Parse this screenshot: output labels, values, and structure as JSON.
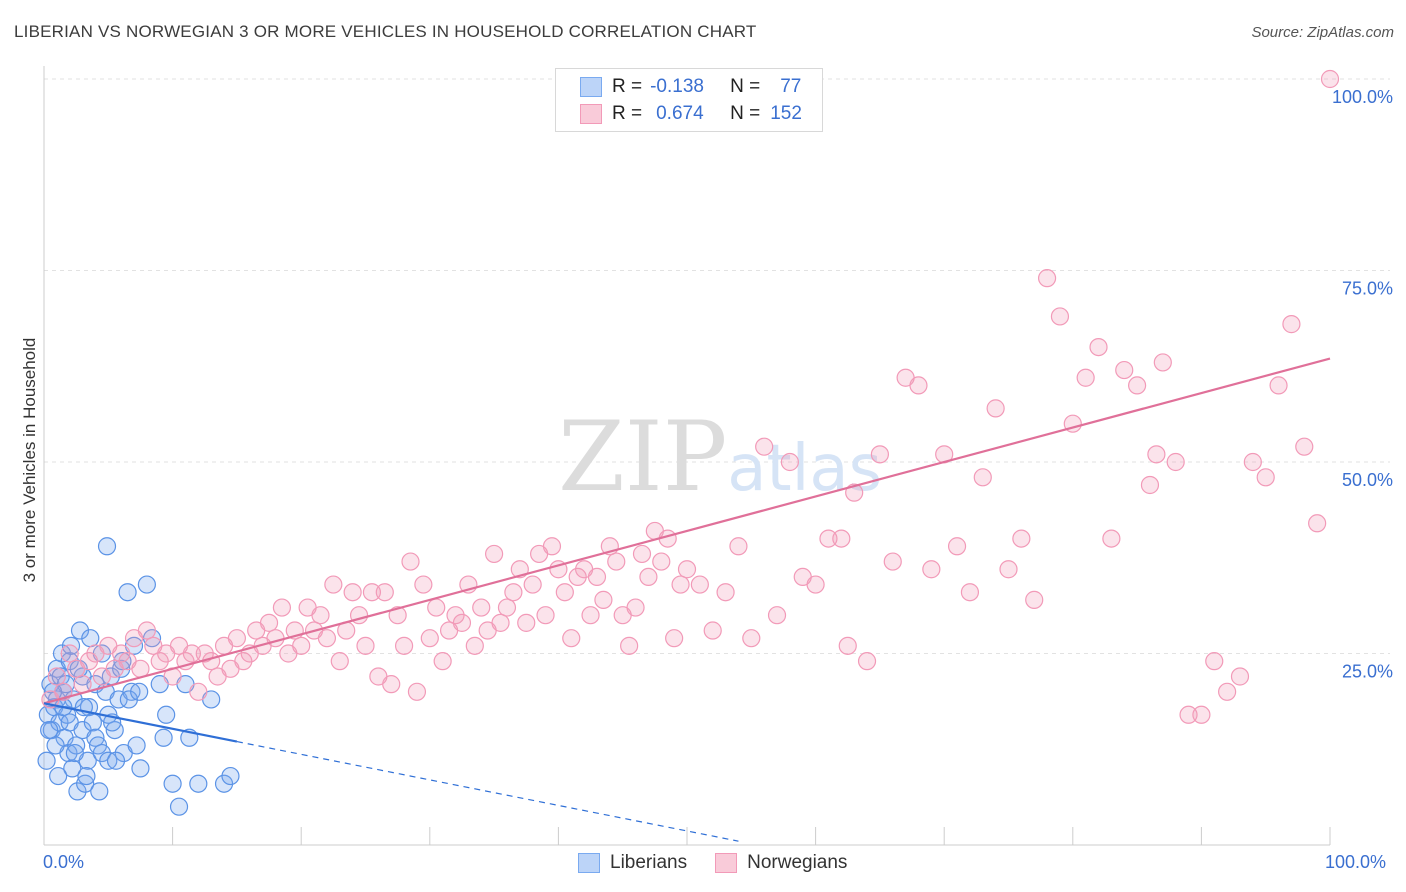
{
  "title": "LIBERIAN VS NORWEGIAN 3 OR MORE VEHICLES IN HOUSEHOLD CORRELATION CHART",
  "source": "Source: ZipAtlas.com",
  "watermark": "ZIPatlas",
  "legend_top": {
    "rows": [
      {
        "r_label": "R =",
        "r_value": "-0.138",
        "n_label": "N =",
        "n_value": "77"
      },
      {
        "r_label": "R =",
        "r_value": "0.674",
        "n_label": "N =",
        "n_value": "152"
      }
    ]
  },
  "bottom_legend": [
    "Liberians",
    "Norwegians"
  ],
  "x_tick_labels": {
    "left": "0.0%",
    "right": "100.0%"
  },
  "chart_data": {
    "type": "scatter",
    "title": "LIBERIAN VS NORWEGIAN 3 OR MORE VEHICLES IN HOUSEHOLD CORRELATION CHART",
    "xlabel": "",
    "ylabel": "3 or more Vehicles in Household",
    "xlim": [
      0,
      100
    ],
    "ylim": [
      0,
      100
    ],
    "y_ticks": [
      25,
      50,
      75,
      100
    ],
    "y_tick_labels": [
      "25.0%",
      "50.0%",
      "75.0%",
      "100.0%"
    ],
    "grid": true,
    "legend_position": "bottom",
    "colors": {
      "Liberians": "#7aaaf0",
      "Norwegians": "#f29ab8",
      "liberian_line": "#2f6fd6",
      "norwegian_line": "#e07099",
      "tick_text": "#3a6fd0"
    },
    "series": [
      {
        "name": "Liberians",
        "trend": {
          "x": [
            0,
            15
          ],
          "y": [
            18.5,
            13.5
          ],
          "dashed_extension_to_x": 54
        },
        "points": [
          [
            0.3,
            17
          ],
          [
            0.5,
            21
          ],
          [
            0.6,
            15
          ],
          [
            0.8,
            18
          ],
          [
            1,
            23
          ],
          [
            1,
            19
          ],
          [
            1.2,
            16
          ],
          [
            1.3,
            22
          ],
          [
            1.4,
            25
          ],
          [
            1.5,
            20
          ],
          [
            1.6,
            14
          ],
          [
            1.8,
            17
          ],
          [
            1.9,
            12
          ],
          [
            2,
            24
          ],
          [
            2,
            16
          ],
          [
            2.2,
            10
          ],
          [
            2.3,
            19
          ],
          [
            2.5,
            13
          ],
          [
            2.6,
            7
          ],
          [
            2.8,
            28
          ],
          [
            3,
            15
          ],
          [
            3,
            22
          ],
          [
            3.2,
            8
          ],
          [
            3.4,
            11
          ],
          [
            3.5,
            18
          ],
          [
            3.6,
            27
          ],
          [
            3.8,
            16
          ],
          [
            4,
            21
          ],
          [
            4,
            14
          ],
          [
            4.2,
            13
          ],
          [
            4.5,
            12
          ],
          [
            4.5,
            25
          ],
          [
            4.8,
            20
          ],
          [
            5,
            17
          ],
          [
            5,
            11
          ],
          [
            5.2,
            22
          ],
          [
            5.5,
            15
          ],
          [
            5.8,
            19
          ],
          [
            6,
            23
          ],
          [
            6.2,
            12
          ],
          [
            6.5,
            33
          ],
          [
            6.8,
            20
          ],
          [
            7,
            26
          ],
          [
            7.2,
            13
          ],
          [
            7.5,
            10
          ],
          [
            8,
            34
          ],
          [
            8.4,
            27
          ],
          [
            9,
            21
          ],
          [
            9.3,
            14
          ],
          [
            9.5,
            17
          ],
          [
            10,
            8
          ],
          [
            10.5,
            5
          ],
          [
            11,
            21
          ],
          [
            11.3,
            14
          ],
          [
            0.2,
            11
          ],
          [
            0.4,
            15
          ],
          [
            0.9,
            13
          ],
          [
            1.1,
            9
          ],
          [
            1.7,
            21
          ],
          [
            2.1,
            26
          ],
          [
            2.4,
            12
          ],
          [
            2.7,
            23
          ],
          [
            3.3,
            9
          ],
          [
            4.3,
            7
          ],
          [
            4.9,
            39
          ],
          [
            5.3,
            16
          ],
          [
            5.6,
            11
          ],
          [
            6.1,
            24
          ],
          [
            6.6,
            19
          ],
          [
            7.4,
            20
          ],
          [
            12,
            8
          ],
          [
            13,
            19
          ],
          [
            14,
            8
          ],
          [
            14.5,
            9
          ],
          [
            3.1,
            18
          ],
          [
            1.5,
            18
          ],
          [
            0.7,
            20
          ]
        ]
      },
      {
        "name": "Norwegians",
        "trend": {
          "x": [
            0,
            100
          ],
          "y": [
            18.5,
            63.5
          ]
        },
        "points": [
          [
            0.5,
            19
          ],
          [
            1,
            22
          ],
          [
            1.5,
            20
          ],
          [
            2,
            25
          ],
          [
            2.5,
            23
          ],
          [
            3,
            21
          ],
          [
            3.5,
            24
          ],
          [
            4,
            25
          ],
          [
            4.5,
            22
          ],
          [
            5,
            26
          ],
          [
            5.5,
            23
          ],
          [
            6,
            25
          ],
          [
            6.5,
            24
          ],
          [
            7,
            27
          ],
          [
            7.5,
            23
          ],
          [
            8,
            28
          ],
          [
            8.5,
            26
          ],
          [
            9,
            24
          ],
          [
            9.5,
            25
          ],
          [
            10,
            22
          ],
          [
            10.5,
            26
          ],
          [
            11,
            24
          ],
          [
            11.5,
            25
          ],
          [
            12,
            20
          ],
          [
            12.5,
            25
          ],
          [
            13,
            24
          ],
          [
            13.5,
            22
          ],
          [
            14,
            26
          ],
          [
            14.5,
            23
          ],
          [
            15,
            27
          ],
          [
            15.5,
            24
          ],
          [
            16,
            25
          ],
          [
            16.5,
            28
          ],
          [
            17,
            26
          ],
          [
            17.5,
            29
          ],
          [
            18,
            27
          ],
          [
            18.5,
            31
          ],
          [
            19,
            25
          ],
          [
            19.5,
            28
          ],
          [
            20,
            26
          ],
          [
            20.5,
            31
          ],
          [
            21,
            28
          ],
          [
            21.5,
            30
          ],
          [
            22,
            27
          ],
          [
            22.5,
            34
          ],
          [
            23,
            24
          ],
          [
            23.5,
            28
          ],
          [
            24,
            33
          ],
          [
            24.5,
            30
          ],
          [
            25,
            26
          ],
          [
            25.5,
            33
          ],
          [
            26,
            22
          ],
          [
            26.5,
            33
          ],
          [
            27,
            21
          ],
          [
            27.5,
            30
          ],
          [
            28,
            26
          ],
          [
            28.5,
            37
          ],
          [
            29,
            20
          ],
          [
            29.5,
            34
          ],
          [
            30,
            27
          ],
          [
            30.5,
            31
          ],
          [
            31,
            24
          ],
          [
            31.5,
            28
          ],
          [
            32,
            30
          ],
          [
            32.5,
            29
          ],
          [
            33,
            34
          ],
          [
            33.5,
            26
          ],
          [
            34,
            31
          ],
          [
            34.5,
            28
          ],
          [
            35,
            38
          ],
          [
            35.5,
            29
          ],
          [
            36,
            31
          ],
          [
            36.5,
            33
          ],
          [
            37,
            36
          ],
          [
            37.5,
            29
          ],
          [
            38,
            34
          ],
          [
            38.5,
            38
          ],
          [
            39,
            30
          ],
          [
            39.5,
            39
          ],
          [
            40,
            36
          ],
          [
            40.5,
            33
          ],
          [
            41,
            27
          ],
          [
            41.5,
            35
          ],
          [
            42,
            36
          ],
          [
            42.5,
            30
          ],
          [
            43,
            35
          ],
          [
            43.5,
            32
          ],
          [
            44,
            39
          ],
          [
            44.5,
            37
          ],
          [
            45,
            30
          ],
          [
            45.5,
            26
          ],
          [
            46,
            31
          ],
          [
            46.5,
            38
          ],
          [
            47,
            35
          ],
          [
            47.5,
            41
          ],
          [
            48,
            37
          ],
          [
            48.5,
            40
          ],
          [
            49,
            27
          ],
          [
            49.5,
            34
          ],
          [
            50,
            36
          ],
          [
            51,
            34
          ],
          [
            52,
            28
          ],
          [
            53,
            33
          ],
          [
            54,
            39
          ],
          [
            55,
            27
          ],
          [
            56,
            52
          ],
          [
            57,
            30
          ],
          [
            58,
            50
          ],
          [
            59,
            35
          ],
          [
            60,
            34
          ],
          [
            61,
            40
          ],
          [
            62,
            40
          ],
          [
            62.5,
            26
          ],
          [
            63,
            46
          ],
          [
            64,
            24
          ],
          [
            65,
            51
          ],
          [
            66,
            37
          ],
          [
            67,
            61
          ],
          [
            68,
            60
          ],
          [
            69,
            36
          ],
          [
            70,
            51
          ],
          [
            71,
            39
          ],
          [
            72,
            33
          ],
          [
            73,
            48
          ],
          [
            74,
            57
          ],
          [
            75,
            36
          ],
          [
            76,
            40
          ],
          [
            77,
            32
          ],
          [
            78,
            74
          ],
          [
            79,
            69
          ],
          [
            80,
            55
          ],
          [
            81,
            61
          ],
          [
            82,
            65
          ],
          [
            83,
            40
          ],
          [
            84,
            62
          ],
          [
            85,
            60
          ],
          [
            86,
            47
          ],
          [
            86.5,
            51
          ],
          [
            87,
            63
          ],
          [
            88,
            50
          ],
          [
            89,
            17
          ],
          [
            90,
            17
          ],
          [
            91,
            24
          ],
          [
            92,
            20
          ],
          [
            93,
            22
          ],
          [
            94,
            50
          ],
          [
            95,
            48
          ],
          [
            96,
            60
          ],
          [
            97,
            68
          ],
          [
            98,
            52
          ],
          [
            99,
            42
          ],
          [
            100,
            100
          ]
        ]
      }
    ]
  }
}
